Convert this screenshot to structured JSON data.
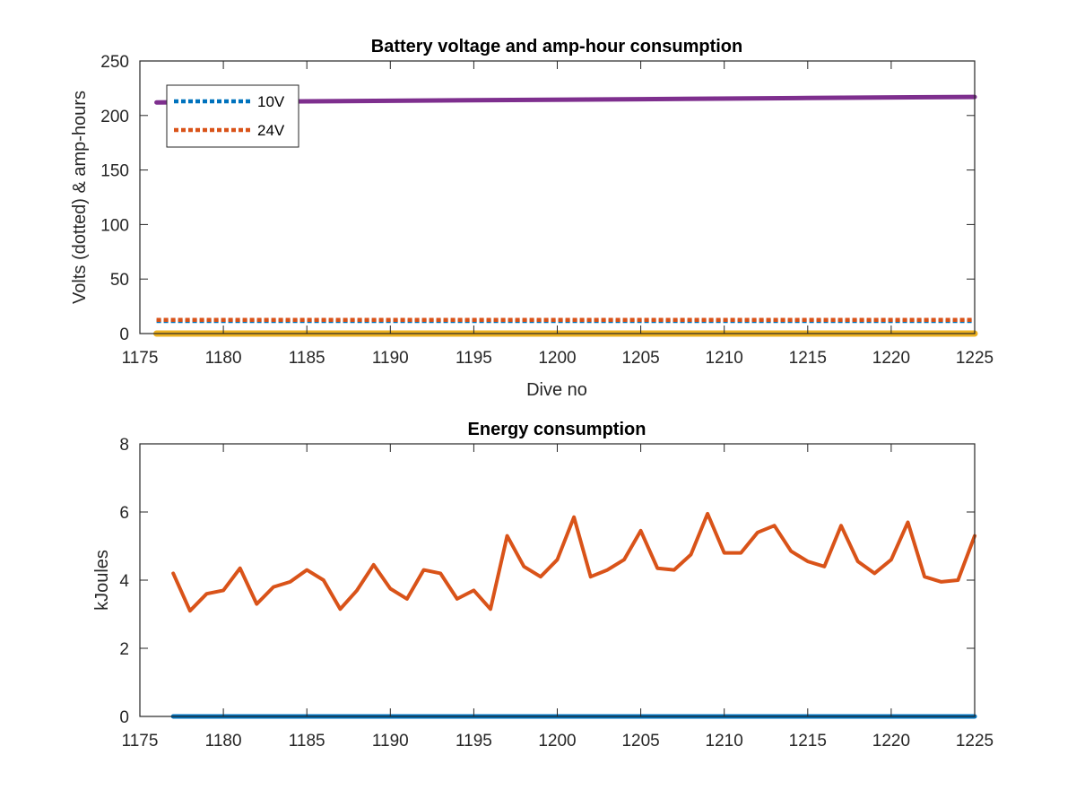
{
  "chart_data": [
    {
      "type": "line",
      "title": "Battery voltage and amp-hour consumption",
      "xlabel": "Dive no",
      "ylabel": "Volts (dotted) & amp-hours",
      "xlim": [
        1175,
        1225
      ],
      "ylim": [
        0,
        250
      ],
      "xticks": [
        "1175",
        "1180",
        "1185",
        "1190",
        "1195",
        "1200",
        "1205",
        "1210",
        "1215",
        "1220",
        "1225"
      ],
      "yticks": [
        "0",
        "50",
        "100",
        "150",
        "200",
        "250"
      ],
      "grid": false,
      "legend_position": "top-left",
      "series": [
        {
          "name": "10V",
          "style": "dotted",
          "color": "#0072BD",
          "x": [
            1176,
            1225
          ],
          "y": [
            11.5,
            11.5
          ]
        },
        {
          "name": "24V",
          "style": "dotted",
          "color": "#D95319",
          "x": [
            1176,
            1225
          ],
          "y": [
            12.5,
            12.5
          ]
        },
        {
          "style": "solid",
          "color": "#EDB120",
          "x": [
            1176,
            1225
          ],
          "y": [
            0,
            0
          ]
        },
        {
          "style": "solid",
          "color": "#7E2F8E",
          "x": [
            1176,
            1185,
            1195,
            1205,
            1215,
            1225
          ],
          "y": [
            212,
            213,
            214,
            215,
            216,
            217
          ]
        }
      ]
    },
    {
      "type": "line",
      "title": "Energy consumption",
      "xlabel": "",
      "ylabel": "kJoules",
      "xlim": [
        1175,
        1225
      ],
      "ylim": [
        0,
        8
      ],
      "xticks": [
        "1175",
        "1180",
        "1185",
        "1190",
        "1195",
        "1200",
        "1205",
        "1210",
        "1215",
        "1220",
        "1225"
      ],
      "yticks": [
        "0",
        "2",
        "4",
        "6",
        "8"
      ],
      "grid": false,
      "series": [
        {
          "style": "solid",
          "color": "#0072BD",
          "x": [
            1177,
            1225
          ],
          "y": [
            0,
            0
          ]
        },
        {
          "style": "solid",
          "color": "#D95319",
          "x": [
            1177,
            1178,
            1179,
            1180,
            1181,
            1182,
            1183,
            1184,
            1185,
            1186,
            1187,
            1188,
            1189,
            1190,
            1191,
            1192,
            1193,
            1194,
            1195,
            1196,
            1197,
            1198,
            1199,
            1200,
            1201,
            1202,
            1203,
            1204,
            1205,
            1206,
            1207,
            1208,
            1209,
            1210,
            1211,
            1212,
            1213,
            1214,
            1215,
            1216,
            1217,
            1218,
            1219,
            1220,
            1221,
            1222,
            1223,
            1224,
            1225
          ],
          "y": [
            4.2,
            3.1,
            3.6,
            3.7,
            4.35,
            3.3,
            3.8,
            3.95,
            4.3,
            4.0,
            3.15,
            3.7,
            4.45,
            3.75,
            3.45,
            4.3,
            4.2,
            3.45,
            3.7,
            3.15,
            5.3,
            4.4,
            4.1,
            4.6,
            5.85,
            4.1,
            4.3,
            4.6,
            5.45,
            4.35,
            4.3,
            4.75,
            5.95,
            4.8,
            4.8,
            5.4,
            5.6,
            4.85,
            4.55,
            4.4,
            5.6,
            4.55,
            4.2,
            4.6,
            5.7,
            4.1,
            3.95,
            4.0,
            5.3
          ]
        }
      ]
    }
  ]
}
